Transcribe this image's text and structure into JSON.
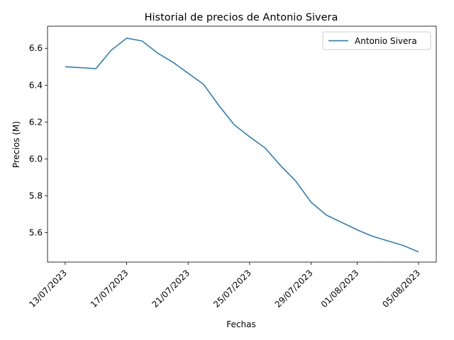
{
  "chart_data": {
    "type": "line",
    "title": "Historial de precios de Antonio Sivera",
    "xlabel": "Fechas",
    "ylabel": "Precios (M)",
    "x_start": "2023-07-13",
    "x_end": "2023-08-05",
    "xticks": [
      {
        "date": "2023-07-13",
        "label": "13/07/2023"
      },
      {
        "date": "2023-07-17",
        "label": "17/07/2023"
      },
      {
        "date": "2023-07-21",
        "label": "21/07/2023"
      },
      {
        "date": "2023-07-25",
        "label": "25/07/2023"
      },
      {
        "date": "2023-07-29",
        "label": "29/07/2023"
      },
      {
        "date": "2023-08-01",
        "label": "01/08/2023"
      },
      {
        "date": "2023-08-05",
        "label": "05/08/2023"
      }
    ],
    "yticks": [
      5.6,
      5.8,
      6.0,
      6.2,
      6.4,
      6.6
    ],
    "ytick_labels": [
      "5.6",
      "5.8",
      "6.0",
      "6.2",
      "6.4",
      "6.6"
    ],
    "ylim": [
      5.44,
      6.72
    ],
    "grid": false,
    "legend_position": "top-right",
    "series": [
      {
        "name": "Antonio Sivera",
        "color": "#1f77b4",
        "points": [
          {
            "x": "2023-07-13",
            "y": 6.5
          },
          {
            "x": "2023-07-15",
            "y": 6.49
          },
          {
            "x": "2023-07-16",
            "y": 6.59
          },
          {
            "x": "2023-07-17",
            "y": 6.655
          },
          {
            "x": "2023-07-18",
            "y": 6.64
          },
          {
            "x": "2023-07-19",
            "y": 6.575
          },
          {
            "x": "2023-07-20",
            "y": 6.525
          },
          {
            "x": "2023-07-21",
            "y": 6.465
          },
          {
            "x": "2023-07-22",
            "y": 6.405
          },
          {
            "x": "2023-07-23",
            "y": 6.29
          },
          {
            "x": "2023-07-24",
            "y": 6.185
          },
          {
            "x": "2023-07-25",
            "y": 6.12
          },
          {
            "x": "2023-07-26",
            "y": 6.06
          },
          {
            "x": "2023-07-27",
            "y": 5.965
          },
          {
            "x": "2023-07-28",
            "y": 5.88
          },
          {
            "x": "2023-07-29",
            "y": 5.765
          },
          {
            "x": "2023-07-30",
            "y": 5.695
          },
          {
            "x": "2023-07-31",
            "y": 5.655
          },
          {
            "x": "2023-08-01",
            "y": 5.615
          },
          {
            "x": "2023-08-02",
            "y": 5.58
          },
          {
            "x": "2023-08-03",
            "y": 5.555
          },
          {
            "x": "2023-08-04",
            "y": 5.53
          },
          {
            "x": "2023-08-05",
            "y": 5.495
          }
        ]
      }
    ]
  }
}
